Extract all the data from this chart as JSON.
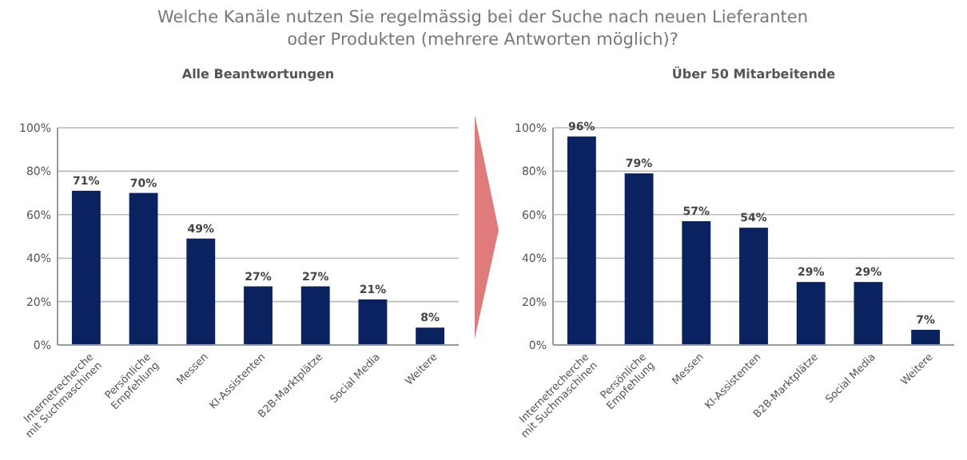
{
  "chart_data": [
    {
      "type": "bar",
      "title": "Welche Kanäle nutzen Sie regelmässig bei der Suche nach neuen Lieferanten\noder Produkten (mehrere Antworten möglich)?",
      "subtitle": "Alle Beantwortungen",
      "categories": [
        "Internetrecherche\nmit Suchmaschinen",
        "Persönliche\nEmpfehlung",
        "Messen",
        "KI-Assistenten",
        "B2B-Marktplätze",
        "Social Media",
        "Weitere"
      ],
      "values": [
        71,
        70,
        49,
        27,
        27,
        21,
        8
      ],
      "value_labels": [
        "71%",
        "70%",
        "49%",
        "27%",
        "27%",
        "21%",
        "8%"
      ],
      "color": "#0b2260",
      "ylim": [
        0,
        100
      ],
      "yticks": [
        {
          "value": 0,
          "label": "0%"
        },
        {
          "value": 20,
          "label": "20%"
        },
        {
          "value": 40,
          "label": "40%"
        },
        {
          "value": 60,
          "label": "60%"
        },
        {
          "value": 80,
          "label": "80%"
        },
        {
          "value": 100,
          "label": "100%"
        }
      ],
      "grid": "y"
    },
    {
      "type": "bar",
      "subtitle": "Über 50 Mitarbeitende",
      "categories": [
        "Internetrecherche\nmit Suchmaschinen",
        "Persönliche\nEmpfehlung",
        "Messen",
        "KI-Assistenten",
        "B2B-Marktplätze",
        "Social Media",
        "Weitere"
      ],
      "values": [
        96,
        79,
        57,
        54,
        29,
        29,
        7
      ],
      "value_labels": [
        "96%",
        "79%",
        "57%",
        "54%",
        "29%",
        "29%",
        "7%"
      ],
      "color": "#0b2260",
      "ylim": [
        0,
        100
      ],
      "yticks": [
        {
          "value": 0,
          "label": "0%"
        },
        {
          "value": 20,
          "label": "20%"
        },
        {
          "value": 40,
          "label": "40%"
        },
        {
          "value": 60,
          "label": "60%"
        },
        {
          "value": 80,
          "label": "80%"
        },
        {
          "value": 100,
          "label": "100%"
        }
      ],
      "grid": "y"
    }
  ]
}
